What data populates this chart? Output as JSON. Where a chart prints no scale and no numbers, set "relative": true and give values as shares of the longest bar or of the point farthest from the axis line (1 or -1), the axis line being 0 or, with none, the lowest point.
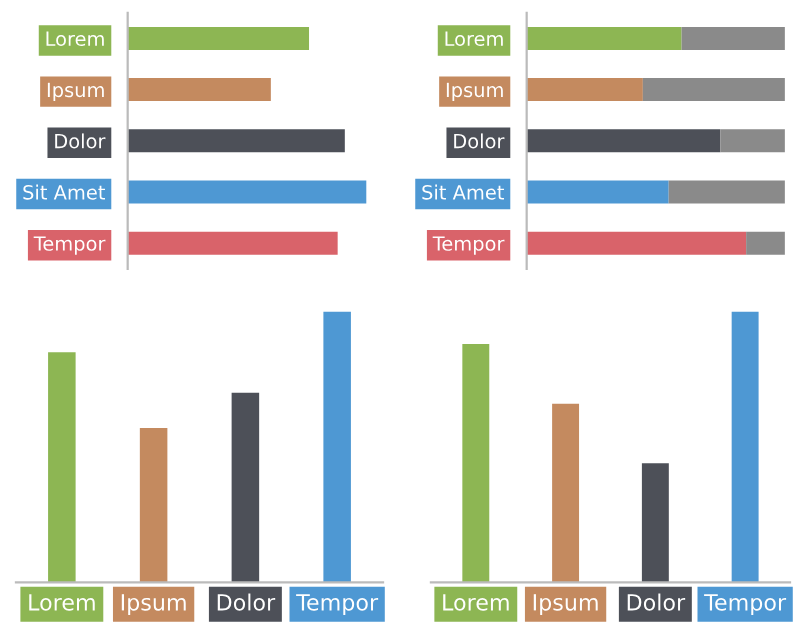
{
  "chart_data": [
    {
      "type": "bar",
      "orientation": "horizontal",
      "relative": true,
      "categories": [
        "Lorem",
        "Ipsum",
        "Dolor",
        "Sit Amet",
        "Tempor"
      ],
      "series": [
        {
          "colors": [
            "#8db653",
            "#c48a5f",
            "#4d5058",
            "#4e98d3",
            "#d9636a"
          ],
          "values": [
            0.76,
            0.6,
            0.91,
            1.0,
            0.88
          ]
        }
      ]
    },
    {
      "type": "bar",
      "orientation": "horizontal",
      "relative": true,
      "stacked": true,
      "categories": [
        "Lorem",
        "Ipsum",
        "Dolor",
        "Sit Amet",
        "Tempor"
      ],
      "series": [
        {
          "colors": [
            "#8db653",
            "#c48a5f",
            "#4d5058",
            "#4e98d3",
            "#d9636a"
          ],
          "values": [
            0.6,
            0.45,
            0.75,
            0.55,
            0.85
          ]
        },
        {
          "color": "#8a8a8a",
          "values": [
            0.4,
            0.55,
            0.25,
            0.45,
            0.15
          ]
        }
      ]
    },
    {
      "type": "bar",
      "relative": true,
      "categories": [
        "Lorem",
        "Ipsum",
        "Dolor",
        "Tempor"
      ],
      "series": [
        {
          "colors": [
            "#8db653",
            "#c48a5f",
            "#4d5058",
            "#4e98d3"
          ],
          "values": [
            0.85,
            0.57,
            0.7,
            1.0
          ]
        }
      ]
    },
    {
      "type": "bar",
      "relative": true,
      "categories": [
        "Lorem",
        "Ipsum",
        "Dolor",
        "Tempor"
      ],
      "series": [
        {
          "colors": [
            "#8db653",
            "#c48a5f",
            "#4d5058",
            "#4e98d3"
          ],
          "values": [
            0.88,
            0.66,
            0.44,
            1.0
          ]
        }
      ]
    }
  ]
}
